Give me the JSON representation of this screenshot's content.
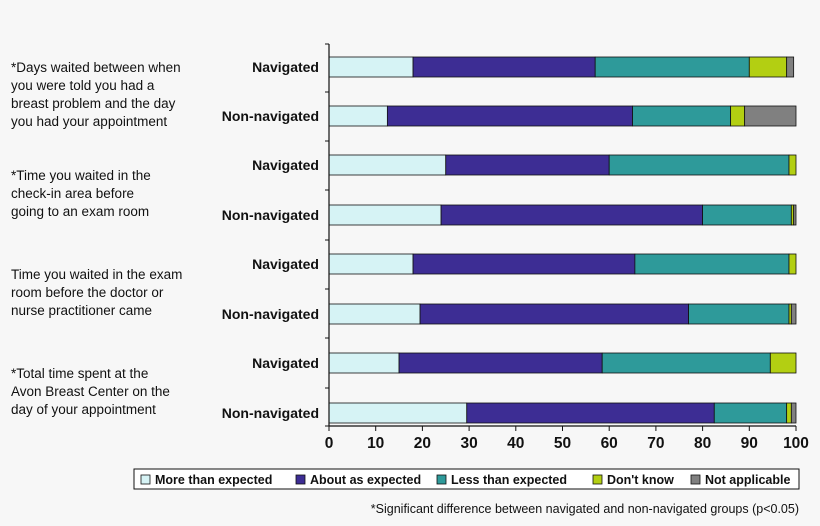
{
  "chart_data": {
    "type": "bar",
    "orientation": "horizontal",
    "stacked": true,
    "xlim": [
      0,
      100
    ],
    "xticks": [
      "0",
      "10",
      "20",
      "30",
      "40",
      "50",
      "60",
      "70",
      "80",
      "90",
      "100"
    ],
    "grid": false,
    "legend_position": "bottom",
    "groups": [
      {
        "label_lines": [
          "*Days waited between when",
          "you were told you had a",
          "breast problem and the day",
          "you had your appointment"
        ],
        "rows": [
          {
            "label": "Navigated",
            "values": [
              18,
              39,
              33,
              8,
              1.5
            ]
          },
          {
            "label": "Non-navigated",
            "values": [
              12.5,
              52.5,
              21,
              3,
              11
            ]
          }
        ]
      },
      {
        "label_lines": [
          "*Time you waited in the",
          "check-in area before",
          "going to an exam room"
        ],
        "rows": [
          {
            "label": "Navigated",
            "values": [
              25,
              35,
              38.5,
              1.5,
              0
            ]
          },
          {
            "label": "Non-navigated",
            "values": [
              24,
              56,
              19,
              0.5,
              0.5
            ]
          }
        ]
      },
      {
        "label_lines": [
          "Time you waited in the exam",
          "room before the doctor or",
          "nurse practitioner came"
        ],
        "rows": [
          {
            "label": "Navigated",
            "values": [
              18,
              47.5,
              33,
              1.5,
              0
            ]
          },
          {
            "label": "Non-navigated",
            "values": [
              19.5,
              57.5,
              21.5,
              0.5,
              1
            ]
          }
        ]
      },
      {
        "label_lines": [
          "*Total time spent at the",
          "Avon Breast Center on the",
          "day of your appointment"
        ],
        "rows": [
          {
            "label": "Navigated",
            "values": [
              15,
              43.5,
              36,
              5.5,
              0
            ]
          },
          {
            "label": "Non-navigated",
            "values": [
              29.5,
              53,
              15.5,
              1,
              1
            ]
          }
        ]
      }
    ],
    "series": [
      {
        "name": "More than expected",
        "color": "#d6f3f5"
      },
      {
        "name": "About as expected",
        "color": "#3d2d94"
      },
      {
        "name": "Less than expected",
        "color": "#2e9a9a"
      },
      {
        "name": "Don't know",
        "color": "#b3cf12"
      },
      {
        "name": "Not applicable",
        "color": "#808080"
      }
    ],
    "footnote": "*Significant difference between navigated and non-navigated groups (p<0.05)"
  }
}
